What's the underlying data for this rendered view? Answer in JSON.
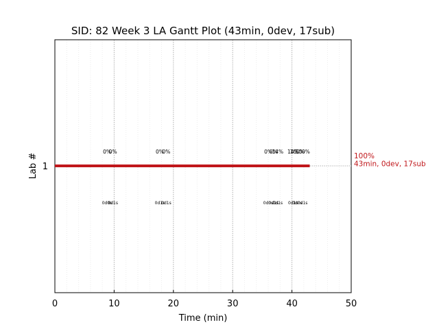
{
  "chart_data": {
    "type": "gantt",
    "title": "SID: 82 Week 3 LA Gantt Plot (43min, 0dev, 17sub)",
    "xlabel": "Time (min)",
    "ylabel": "Lab #",
    "xlim": [
      0,
      50
    ],
    "xticks": [
      0,
      10,
      20,
      30,
      40,
      50
    ],
    "minor_grid_step": 2,
    "grid": true,
    "rows": [
      {
        "label": "1",
        "start": 0,
        "end": 43,
        "color": "#c0171b",
        "end_label_top": "100%",
        "end_label_bottom": "43min, 0dev, 17sub",
        "markers": [
          {
            "x": 8.8,
            "top": "0%",
            "bottom": "0d0s"
          },
          {
            "x": 9.8,
            "top": "0%",
            "bottom": "0d1s"
          },
          {
            "x": 17.7,
            "top": "0%",
            "bottom": "0d1s"
          },
          {
            "x": 18.8,
            "top": "0%",
            "bottom": "0d1s"
          },
          {
            "x": 36.0,
            "top": "0%",
            "bottom": "0d0s"
          },
          {
            "x": 36.9,
            "top": "0%",
            "bottom": "0d1s"
          },
          {
            "x": 37.6,
            "top": "14%",
            "bottom": "0d1s"
          },
          {
            "x": 40.2,
            "top": "14%",
            "bottom": "0d1s"
          },
          {
            "x": 40.9,
            "top": "100%",
            "bottom": "0d0s"
          },
          {
            "x": 41.8,
            "top": "100%",
            "bottom": "0d1s"
          }
        ]
      }
    ],
    "colors": {
      "bar": "#c0171b",
      "end_label": "#c0171b",
      "major_grid": "#b0b0b0",
      "minor_grid": "#ececec"
    }
  }
}
